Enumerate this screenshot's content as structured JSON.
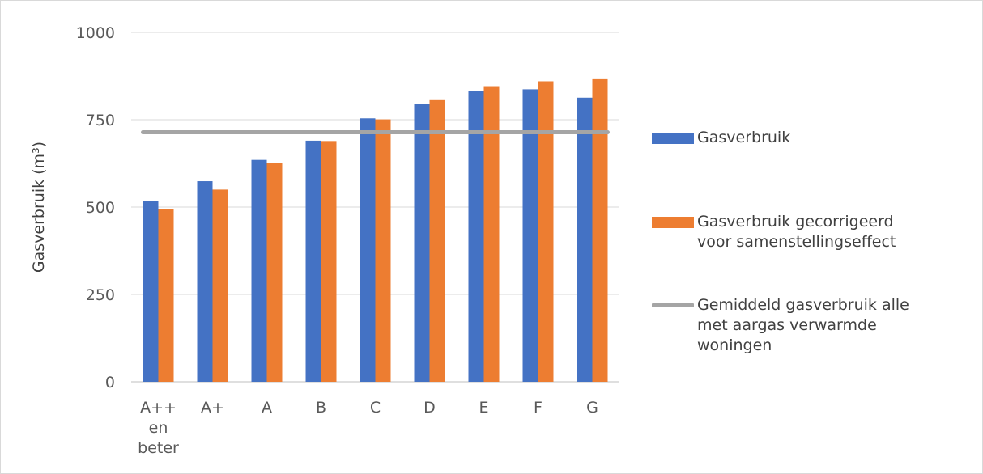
{
  "chart_data": {
    "type": "bar",
    "categories": [
      "A++\nen\nbeter",
      "A+",
      "A",
      "B",
      "C",
      "D",
      "E",
      "F",
      "G"
    ],
    "series": [
      {
        "name": "Gasverbruik",
        "values": [
          518,
          574,
          635,
          690,
          754,
          796,
          832,
          837,
          813
        ],
        "color": "#4472c4"
      },
      {
        "name": "Gasverbruik gecorrigeerd\nvoor samenstellingseffect",
        "values": [
          494,
          550,
          625,
          689,
          751,
          806,
          846,
          860,
          866
        ],
        "color": "#ed7d31"
      }
    ],
    "reference_line": {
      "name": "Gemiddeld gasverbruik alle\nmet aargas verwarmde\nwoningen",
      "value": 714,
      "color": "#a5a5a5"
    },
    "ylabel": "Gasverbruik (m³)",
    "xlabel": "",
    "ylim": [
      0,
      1000
    ],
    "yticks": [
      0,
      250,
      500,
      750,
      1000
    ],
    "grid": true,
    "legend_position": "right"
  }
}
